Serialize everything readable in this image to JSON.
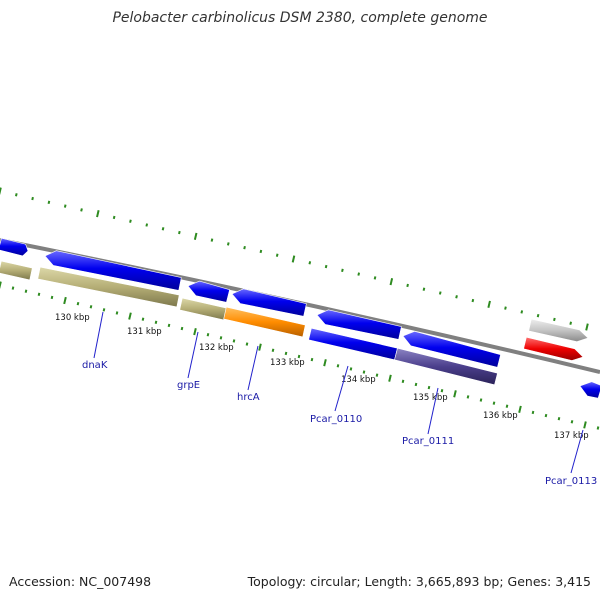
{
  "header": {
    "title": "Pelobacter carbinolicus DSM 2380, complete genome"
  },
  "footer": {
    "accession": "Accession: NC_007498",
    "summary": "Topology: circular; Length: 3,665,893 bp; Genes: 3,415"
  },
  "colors": {
    "backbone": "#808080",
    "tick": "#2e8b20",
    "gene_blue": "#0a0ae6",
    "gene_khaki": "#b8b27a",
    "gene_orange": "#ff8c00",
    "gene_purple": "#4b3f8c",
    "gene_grey": "#c0c0c0",
    "gene_red": "#ee0000",
    "label_text": "#1a1aa6"
  },
  "tick_labels": [
    "130 kbp",
    "131 kbp",
    "132 kbp",
    "133 kbp",
    "134 kbp",
    "135 kbp",
    "136 kbp",
    "137 kbp"
  ],
  "gene_labels": [
    "dnaK",
    "grpE",
    "hrcA",
    "Pcar_0110",
    "Pcar_0111",
    "Pcar_0113"
  ],
  "features": [
    {
      "name": "feature-1",
      "strand": "+",
      "color": "gene_blue"
    },
    {
      "name": "feature-2",
      "strand": "-",
      "color": "gene_blue"
    },
    {
      "name": "feature-3",
      "strand": "-",
      "color": "gene_blue"
    },
    {
      "name": "feature-4",
      "strand": "-",
      "color": "gene_blue"
    },
    {
      "name": "feature-5",
      "strand": "-",
      "color": "gene_blue"
    },
    {
      "name": "feature-6",
      "strand": "-",
      "color": "gene_blue"
    },
    {
      "name": "feature-7",
      "strand": "-",
      "color": "gene_blue"
    },
    {
      "name": "feature-8",
      "strand": "+",
      "color": "gene_blue"
    },
    {
      "name": "feature-9",
      "strand": "-",
      "color": "gene_blue"
    },
    {
      "name": "feature-10",
      "strand": "none",
      "color": "gene_khaki"
    },
    {
      "name": "feature-11",
      "strand": "none",
      "color": "gene_khaki"
    },
    {
      "name": "feature-12",
      "strand": "none",
      "color": "gene_khaki"
    },
    {
      "name": "feature-13",
      "strand": "none",
      "color": "gene_orange"
    },
    {
      "name": "feature-14",
      "strand": "none",
      "color": "gene_purple"
    },
    {
      "name": "feature-15",
      "strand": "+",
      "color": "gene_grey"
    },
    {
      "name": "feature-16",
      "strand": "+",
      "color": "gene_red"
    }
  ]
}
